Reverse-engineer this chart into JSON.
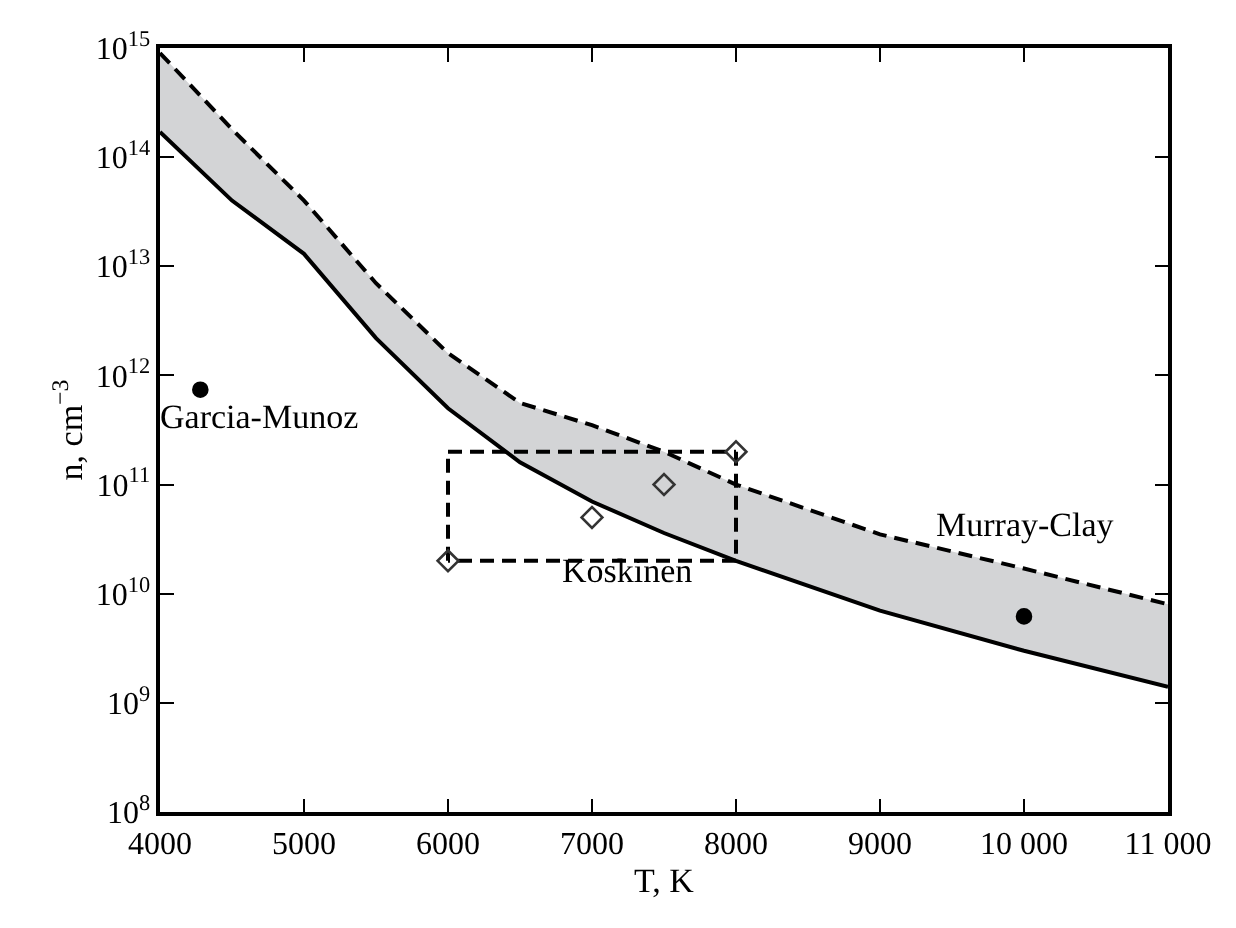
{
  "chart_data": {
    "type": "line",
    "xlabel": "T, K",
    "ylabel": "n, cm$^{−3}$",
    "log": "y",
    "xlim": [
      4000,
      11000
    ],
    "xticks": [
      4000,
      5000,
      6000,
      7000,
      8000,
      9000,
      {
        "value": 10000,
        "label": "10 000"
      },
      {
        "value": 11000,
        "label": "11 000"
      }
    ],
    "ylim": [
      100000000.0,
      1000000000000000.0
    ],
    "yticks": [
      {
        "value": 100000000.0,
        "label": "10$^{8}$"
      },
      {
        "value": 1000000000.0,
        "label": "10$^{9}$"
      },
      {
        "value": 10000000000.0,
        "label": "10$^{10}$"
      },
      {
        "value": 100000000000.0,
        "label": "10$^{11}$"
      },
      {
        "value": 1000000000000.0,
        "label": "10$^{12}$"
      },
      {
        "value": 10000000000000.0,
        "label": "10$^{13}$"
      },
      {
        "value": 100000000000000.0,
        "label": "10$^{14}$"
      },
      {
        "value": 1000000000000000.0,
        "label": "10$^{15}$"
      }
    ],
    "series": [
      {
        "color": "#000000",
        "line_style": "solid",
        "x": [
          4000,
          4500,
          5000,
          5500,
          6000,
          6500,
          7000,
          7500,
          8000,
          9000,
          10000,
          11000
        ],
        "values": [
          170000000000000.0,
          40000000000000.0,
          13000000000000.0,
          2200000000000.0,
          500000000000.0,
          160000000000.0,
          70000000000.0,
          36000000000.0,
          20000000000.0,
          7000000000.0,
          3000000000.0,
          1400000000.0
        ]
      },
      {
        "color": "#000000",
        "line_style": "dashed",
        "x": [
          4000,
          4500,
          5000,
          5500,
          6000,
          6500,
          7000,
          7500,
          8000,
          9000,
          10000,
          11000
        ],
        "values": [
          900000000000000.0,
          180000000000000.0,
          40000000000000.0,
          7000000000000.0,
          1600000000000.0,
          560000000000.0,
          350000000000.0,
          200000000000.0,
          100000000000.0,
          35000000000.0,
          17000000000.0,
          8000000000.0
        ],
        "lower": [
          170000000000000.0,
          40000000000000.0,
          13000000000000.0,
          2200000000000.0,
          500000000000.0,
          160000000000.0,
          70000000000.0,
          36000000000.0,
          20000000000.0,
          7000000000.0,
          3000000000.0,
          1400000000.0
        ],
        "upper": [
          900000000000000.0,
          180000000000000.0,
          40000000000000.0,
          7000000000000.0,
          1600000000000.0,
          560000000000.0,
          350000000000.0,
          200000000000.0,
          100000000000.0,
          35000000000.0,
          17000000000.0,
          8000000000.0
        ]
      },
      {
        "color": "#000000",
        "line_style": "dashed",
        "x": [
          6000,
          6000
        ],
        "values": [
          20000000000.0,
          200000000000.0
        ]
      },
      {
        "color": "#000000",
        "line_style": "dashed",
        "x": [
          6000,
          8000
        ],
        "values": [
          200000000000.0,
          200000000000.0
        ]
      },
      {
        "color": "#000000",
        "line_style": "dashed",
        "x": [
          8000,
          8000
        ],
        "values": [
          200000000000.0,
          20000000000.0
        ]
      },
      {
        "color": "#000000",
        "line_style": "dashed",
        "x": [
          8000,
          6000
        ],
        "values": [
          20000000000.0,
          20000000000.0
        ]
      },
      {
        "type": "scatter",
        "color": "#000000",
        "marker": "circle",
        "x": [
          4280,
          10000
        ],
        "values": [
          740000000000.0,
          6200000000.0
        ]
      },
      {
        "type": "scatter",
        "color": "#333333",
        "marker": "diamond",
        "x": [
          6000,
          7000,
          7500,
          8000
        ],
        "values": [
          20000000000.0,
          50000000000.0,
          100000000000.0,
          200000000000.0
        ]
      }
    ],
    "annotations": [
      {
        "text": "Garcia-Munoz",
        "x": 4280,
        "y": 740000000000.0
      },
      "Koskinen",
      {
        "text": "Murray-Clay",
        "x": 10000,
        "y": 6200000000.0
      }
    ]
  }
}
